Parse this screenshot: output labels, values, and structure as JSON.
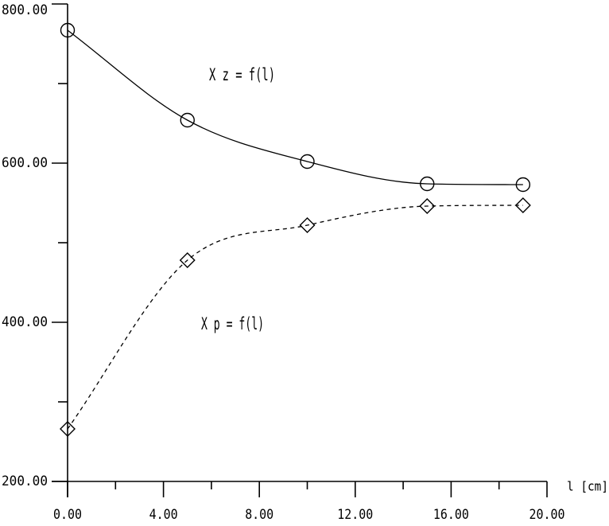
{
  "figure": {
    "background_color": "#ffffff",
    "ink_color": "#000000"
  },
  "chart_data": {
    "type": "line",
    "title": "",
    "xlabel": "l [cm]",
    "ylabel": "",
    "xlim": [
      0,
      20
    ],
    "ylim": [
      200,
      800
    ],
    "grid": false,
    "legend_position": "inline-annotations",
    "x_major_ticks": [
      0,
      4,
      8,
      12,
      16,
      20
    ],
    "x_minor_ticks": [
      2,
      6,
      10,
      14,
      18
    ],
    "x_tick_labels": [
      "0.00",
      "4.00",
      "8.00",
      "12.00",
      "16.00",
      "20.00"
    ],
    "y_major_ticks": [
      200,
      400,
      600,
      800
    ],
    "y_minor_ticks": [
      300,
      500,
      700
    ],
    "y_tick_labels": [
      "200.00",
      "400.00",
      "600.00",
      "800.00"
    ],
    "series": [
      {
        "name": "X z = f(l)",
        "marker": "circle",
        "line_style": "solid",
        "x": [
          0,
          5,
          10,
          15,
          19
        ],
        "y": [
          767,
          654,
          602,
          574,
          573
        ]
      },
      {
        "name": "X p = f(l)",
        "marker": "diamond",
        "line_style": "dashed",
        "x": [
          0,
          5,
          10,
          15,
          19
        ],
        "y": [
          266,
          478,
          522,
          546,
          547
        ]
      }
    ]
  }
}
